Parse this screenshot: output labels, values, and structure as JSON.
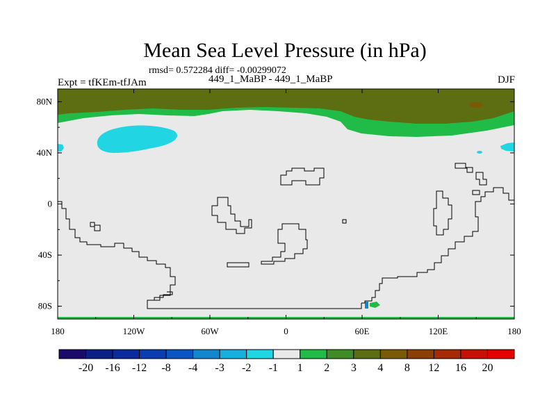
{
  "header": {
    "title": "Mean Sea Level Pressure (in hPa)",
    "stats": "rmsd= 0.572284 diff= -0.00299072",
    "left_label": "Expt = tfKEm-tfJAm",
    "center_label": "449_1_MaBP - 449_1_MaBP",
    "right_label": "DJF"
  },
  "chart_data": {
    "type": "heatmap",
    "title": "Mean Sea Level Pressure (in hPa)",
    "xlim": [
      -180,
      180
    ],
    "ylim": [
      -90,
      90
    ],
    "x_ticks": [
      -180,
      -120,
      -60,
      0,
      60,
      120,
      180
    ],
    "x_tick_labels": [
      "180",
      "120W",
      "60W",
      "0",
      "60E",
      "120E",
      "180"
    ],
    "y_ticks": [
      80,
      40,
      0,
      -40,
      -80
    ],
    "y_tick_labels": [
      "80N",
      "40N",
      "0",
      "40S",
      "80S"
    ],
    "colorbar": {
      "levels": [
        "-20",
        "-16",
        "-12",
        "-8",
        "-4",
        "-3",
        "-2",
        "-1",
        "1",
        "2",
        "3",
        "4",
        "8",
        "12",
        "16",
        "20"
      ],
      "colors": [
        "#1a0a6b",
        "#0c1f86",
        "#0a2a9e",
        "#0a3db2",
        "#0a55c4",
        "#1287cf",
        "#17aee0",
        "#21d6e2",
        "#e9e9e9",
        "#21bb48",
        "#3f8b25",
        "#5d6e12",
        "#7a5a06",
        "#8b3f06",
        "#a62a06",
        "#c61206",
        "#e40000"
      ]
    },
    "regions": [
      {
        "description": "positive band over the Arctic",
        "color": "#5d6e12"
      },
      {
        "description": "positive band south of the Arctic",
        "color": "#21bb48"
      },
      {
        "description": "negative anomaly over the North Pacific",
        "color": "#21d6e2"
      }
    ]
  }
}
